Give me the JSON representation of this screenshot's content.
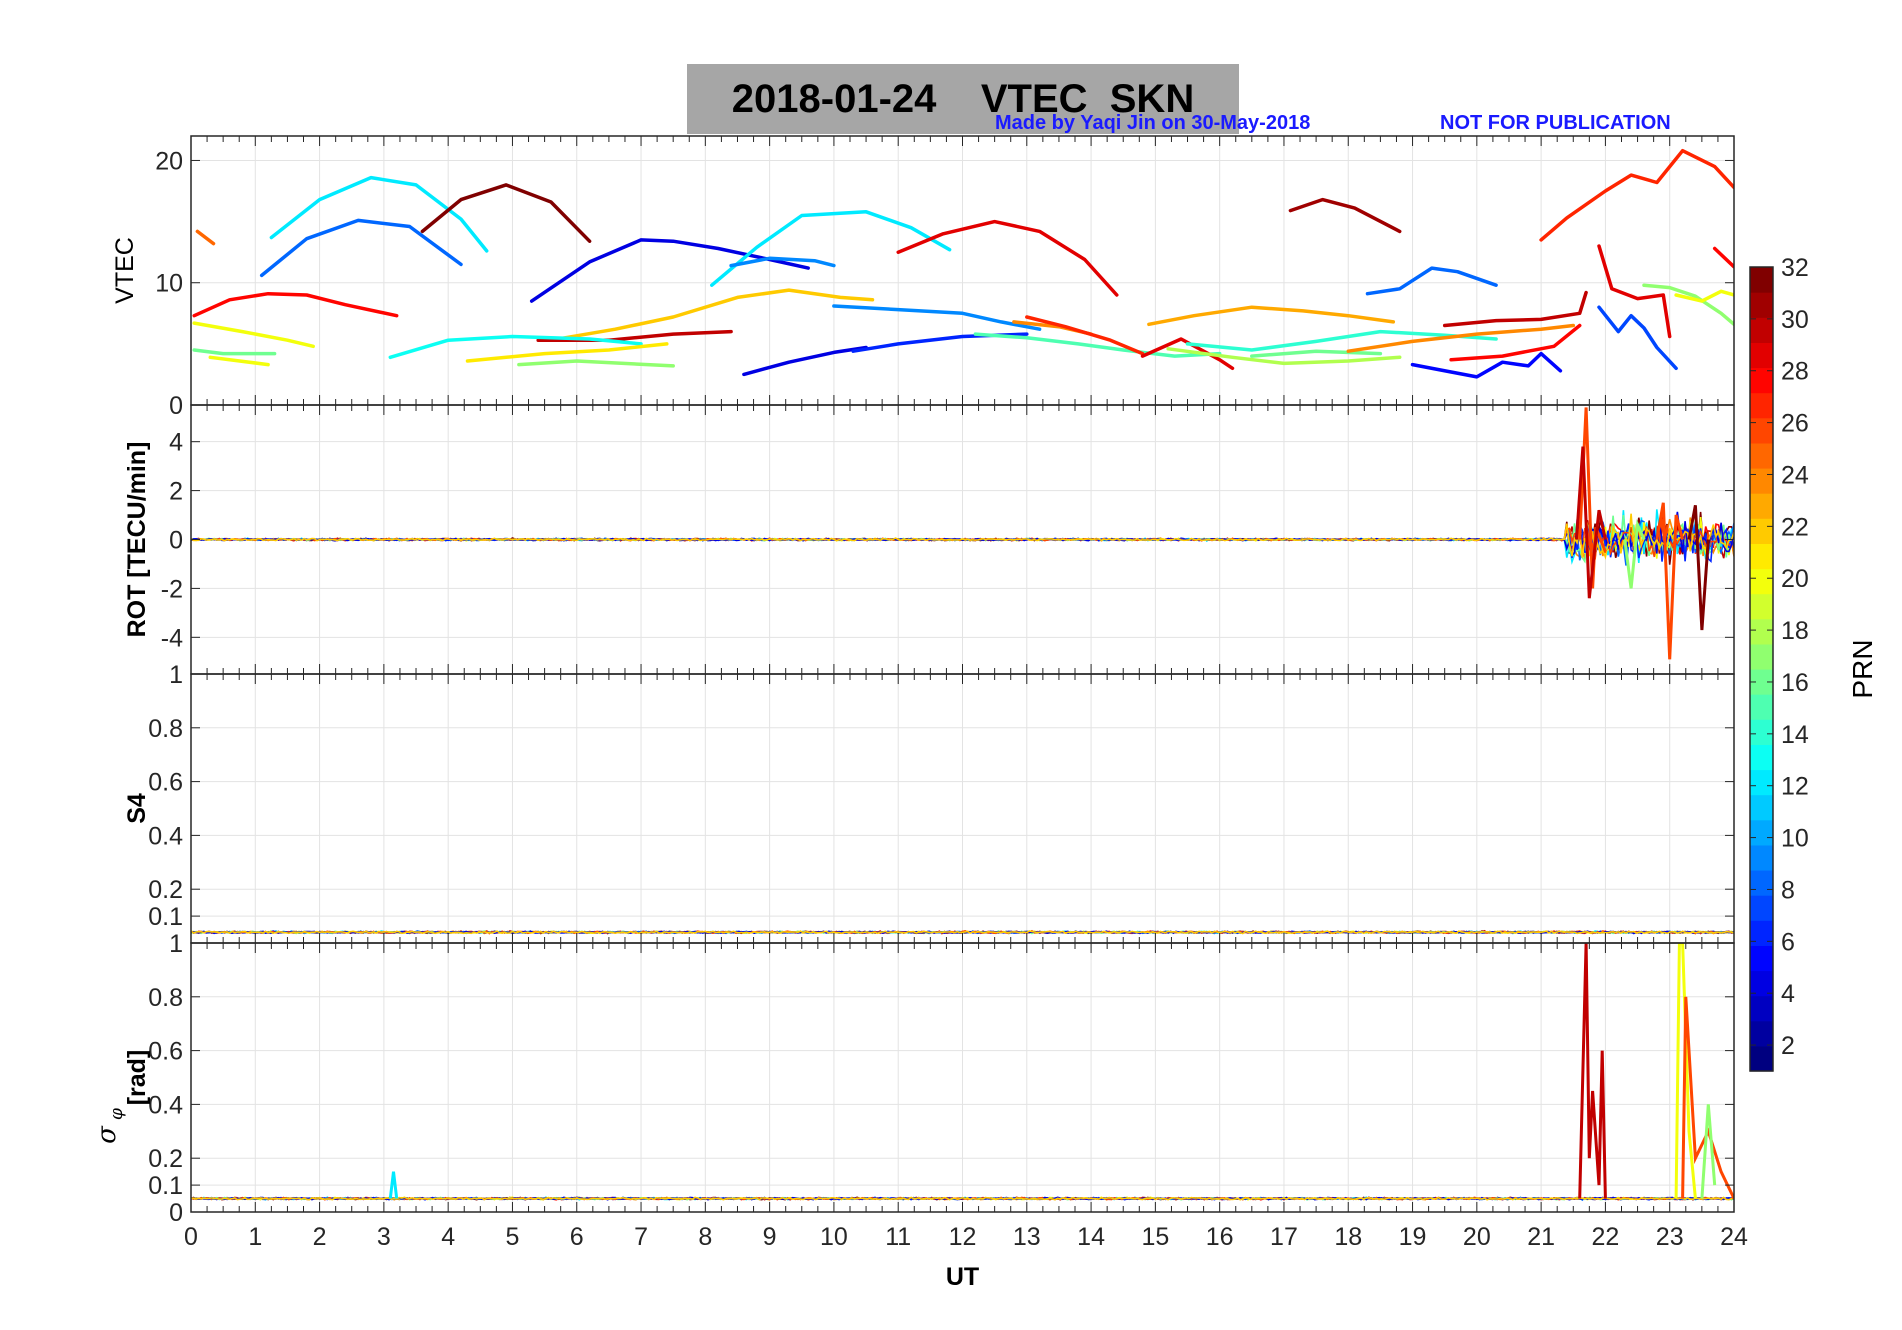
{
  "header": {
    "title": "2018-01-24    VTEC  SKN",
    "credit": "Made by Yaqi Jin on 30-May-2018",
    "notice": "NOT FOR PUBLICATION"
  },
  "chart_data": [
    {
      "type": "line",
      "panel": "vtec",
      "ylabel": "VTEC",
      "xlim": [
        0,
        24
      ],
      "ylim": [
        0,
        22
      ],
      "yticks": [
        0,
        10,
        20
      ],
      "series": [
        {
          "name": "PRN 25",
          "prn": 25,
          "x": [
            0.1,
            0.35
          ],
          "y": [
            14.2,
            13.2
          ]
        },
        {
          "name": "PRN 12",
          "prn": 12,
          "x": [
            1.25,
            2.0,
            2.8,
            3.5,
            4.2,
            4.6
          ],
          "y": [
            13.7,
            16.8,
            18.6,
            18.0,
            15.2,
            12.6
          ]
        },
        {
          "name": "PRN 8",
          "prn": 8,
          "x": [
            1.1,
            1.8,
            2.6,
            3.4,
            4.2
          ],
          "y": [
            10.6,
            13.6,
            15.1,
            14.6,
            11.5
          ]
        },
        {
          "name": "PRN 32",
          "prn": 32,
          "x": [
            3.6,
            4.2,
            4.9,
            5.6,
            6.2
          ],
          "y": [
            14.2,
            16.8,
            18.0,
            16.6,
            13.4
          ]
        },
        {
          "name": "PRN 28",
          "prn": 28,
          "x": [
            0.05,
            0.6,
            1.2,
            1.8,
            2.4,
            3.2
          ],
          "y": [
            7.3,
            8.6,
            9.1,
            9.0,
            8.2,
            7.3
          ]
        },
        {
          "name": "PRN 20",
          "prn": 20,
          "x": [
            0.05,
            0.8,
            1.5,
            1.9
          ],
          "y": [
            6.7,
            6.0,
            5.3,
            4.8
          ]
        },
        {
          "name": "PRN 16",
          "prn": 16,
          "x": [
            0.05,
            0.5,
            1.3
          ],
          "y": [
            4.5,
            4.2,
            4.2
          ]
        },
        {
          "name": "PRN 20",
          "prn": 20,
          "x": [
            0.3,
            1.2
          ],
          "y": [
            3.9,
            3.3
          ]
        },
        {
          "name": "PRN 4",
          "prn": 4,
          "x": [
            5.3,
            6.2,
            7.0,
            7.5,
            8.2,
            9.0,
            9.6
          ],
          "y": [
            8.5,
            11.7,
            13.5,
            13.4,
            12.8,
            11.9,
            11.2
          ]
        },
        {
          "name": "PRN 12",
          "prn": 12,
          "x": [
            8.1,
            8.8,
            9.5,
            10.5,
            11.2,
            11.8
          ],
          "y": [
            9.8,
            12.9,
            15.5,
            15.8,
            14.5,
            12.7
          ]
        },
        {
          "name": "PRN 9",
          "prn": 9,
          "x": [
            8.4,
            9.0,
            9.7,
            10.0
          ],
          "y": [
            11.4,
            12.0,
            11.8,
            11.4
          ]
        },
        {
          "name": "PRN 29",
          "prn": 29,
          "x": [
            11.0,
            11.7,
            12.5,
            13.2,
            13.9,
            14.4
          ],
          "y": [
            12.5,
            14.0,
            15.0,
            14.2,
            11.9,
            9.0
          ]
        },
        {
          "name": "PRN 31",
          "prn": 31,
          "x": [
            17.1,
            17.6,
            18.1,
            18.8
          ],
          "y": [
            15.9,
            16.8,
            16.1,
            14.2
          ]
        },
        {
          "name": "PRN 8",
          "prn": 8,
          "x": [
            18.3,
            18.8,
            19.3,
            19.7,
            20.3
          ],
          "y": [
            9.1,
            9.5,
            11.2,
            10.9,
            9.8
          ]
        },
        {
          "name": "PRN 27",
          "prn": 27,
          "x": [
            21.0,
            21.4,
            22.0,
            22.4,
            22.8,
            23.2,
            23.7,
            24.0
          ],
          "y": [
            13.5,
            15.3,
            17.5,
            18.8,
            18.2,
            20.8,
            19.5,
            17.8
          ]
        },
        {
          "name": "PRN 23",
          "prn": 23,
          "x": [
            14.9,
            15.6,
            16.5,
            17.3,
            18.0,
            18.7
          ],
          "y": [
            6.6,
            7.3,
            8.0,
            7.7,
            7.3,
            6.8
          ]
        },
        {
          "name": "PRN 22",
          "prn": 22,
          "x": [
            5.6,
            6.6,
            7.5,
            8.5,
            9.3,
            10.1,
            10.6
          ],
          "y": [
            5.3,
            6.2,
            7.2,
            8.8,
            9.4,
            8.8,
            8.6
          ]
        },
        {
          "name": "PRN 30",
          "prn": 30,
          "x": [
            5.4,
            6.5,
            7.5,
            8.4
          ],
          "y": [
            5.3,
            5.3,
            5.8,
            6.0
          ]
        },
        {
          "name": "PRN 13",
          "prn": 13,
          "x": [
            3.1,
            4.0,
            5.0,
            6.2,
            7.0
          ],
          "y": [
            3.9,
            5.3,
            5.6,
            5.4,
            5.0
          ]
        },
        {
          "name": "PRN 9",
          "prn": 9,
          "x": [
            10.0,
            11.0,
            12.0,
            12.6,
            13.2
          ],
          "y": [
            8.1,
            7.8,
            7.5,
            6.8,
            6.2
          ]
        },
        {
          "name": "PRN 4",
          "prn": 4,
          "x": [
            8.6,
            9.3,
            10.0,
            10.5
          ],
          "y": [
            2.5,
            3.5,
            4.3,
            4.7
          ]
        },
        {
          "name": "PRN 6",
          "prn": 6,
          "x": [
            10.3,
            11.0,
            12.0,
            13.0
          ],
          "y": [
            4.4,
            5.0,
            5.6,
            5.8
          ]
        },
        {
          "name": "PRN 21",
          "prn": 21,
          "x": [
            4.3,
            5.5,
            6.5,
            7.4
          ],
          "y": [
            3.6,
            4.2,
            4.5,
            5.0
          ]
        },
        {
          "name": "PRN 17",
          "prn": 17,
          "x": [
            5.1,
            6.0,
            7.5
          ],
          "y": [
            3.3,
            3.6,
            3.2
          ]
        },
        {
          "name": "PRN 15",
          "prn": 15,
          "x": [
            12.2,
            13.0,
            13.8,
            14.5,
            15.3,
            16.0
          ],
          "y": [
            5.8,
            5.5,
            5.0,
            4.5,
            4.0,
            4.2
          ]
        },
        {
          "name": "PRN 24",
          "prn": 24,
          "x": [
            12.8,
            13.5,
            14.0
          ],
          "y": [
            6.8,
            6.4,
            5.8
          ]
        },
        {
          "name": "PRN 27",
          "prn": 27,
          "x": [
            13.0,
            13.6,
            14.3,
            14.8
          ],
          "y": [
            7.2,
            6.4,
            5.3,
            4.2
          ]
        },
        {
          "name": "PRN 29",
          "prn": 29,
          "x": [
            14.8,
            15.4,
            16.0,
            16.2
          ],
          "y": [
            4.0,
            5.4,
            3.7,
            3.0
          ]
        },
        {
          "name": "PRN 18",
          "prn": 18,
          "x": [
            15.2,
            16.2,
            17.0,
            18.0,
            18.8
          ],
          "y": [
            4.6,
            3.9,
            3.4,
            3.6,
            3.9
          ]
        },
        {
          "name": "PRN 14",
          "prn": 14,
          "x": [
            15.5,
            16.5,
            17.5,
            18.5,
            19.5,
            20.3
          ],
          "y": [
            5.0,
            4.5,
            5.2,
            6.0,
            5.7,
            5.4
          ]
        },
        {
          "name": "PRN 16",
          "prn": 16,
          "x": [
            16.5,
            17.5,
            18.5
          ],
          "y": [
            4.0,
            4.4,
            4.2
          ]
        },
        {
          "name": "PRN 24",
          "prn": 24,
          "x": [
            18.0,
            19.0,
            20.0,
            21.0,
            21.5
          ],
          "y": [
            4.4,
            5.2,
            5.8,
            6.2,
            6.5
          ]
        },
        {
          "name": "PRN 30",
          "prn": 30,
          "x": [
            19.5,
            20.3,
            21.0,
            21.6,
            21.7
          ],
          "y": [
            6.5,
            6.9,
            7.0,
            7.5,
            9.2
          ]
        },
        {
          "name": "PRN 5",
          "prn": 5,
          "x": [
            19.0,
            19.6,
            20.0,
            20.4,
            20.8,
            21.0,
            21.3
          ],
          "y": [
            3.3,
            2.7,
            2.3,
            3.5,
            3.2,
            4.2,
            2.8
          ]
        },
        {
          "name": "PRN 28",
          "prn": 28,
          "x": [
            19.6,
            20.4,
            21.2,
            21.6
          ],
          "y": [
            3.7,
            4.0,
            4.8,
            6.5
          ]
        },
        {
          "name": "PRN 7",
          "prn": 7,
          "x": [
            21.9,
            22.2,
            22.4,
            22.6,
            22.8,
            23.1
          ],
          "y": [
            8.0,
            6.0,
            7.3,
            6.3,
            4.7,
            3.0
          ]
        },
        {
          "name": "PRN 29",
          "prn": 29,
          "x": [
            21.9,
            22.1,
            22.5,
            22.9,
            23.0
          ],
          "y": [
            13.0,
            9.5,
            8.7,
            9.0,
            5.6
          ]
        },
        {
          "name": "PRN 17",
          "prn": 17,
          "x": [
            22.6,
            23.0,
            23.4,
            23.8,
            24.0
          ],
          "y": [
            9.8,
            9.6,
            8.9,
            7.5,
            6.6
          ]
        },
        {
          "name": "PRN 20",
          "prn": 20,
          "x": [
            23.1,
            23.5,
            23.8,
            24.0
          ],
          "y": [
            9.0,
            8.5,
            9.3,
            9.0
          ]
        },
        {
          "name": "PRN 28",
          "prn": 28,
          "x": [
            23.7,
            24.0
          ],
          "y": [
            12.8,
            11.3
          ]
        }
      ]
    },
    {
      "type": "line",
      "panel": "rot",
      "ylabel": "ROT [TECU/min]",
      "xlim": [
        0,
        24
      ],
      "ylim": [
        -5.5,
        5.5
      ],
      "yticks": [
        -4,
        -2,
        0,
        2,
        4
      ],
      "note": "noise band near 0 with std about 0.06; disturbance after 21.5 UT with peaks near 5.4 and -5"
    },
    {
      "type": "line",
      "panel": "s4",
      "ylabel": "S4",
      "xlim": [
        0,
        24
      ],
      "ylim": [
        0,
        1
      ],
      "yticks": [
        0.1,
        0.2,
        0.4,
        0.6,
        0.8,
        1
      ],
      "note": "baseline about 0.03 to 0.05 all day"
    },
    {
      "type": "line",
      "panel": "sigma_phi",
      "ylabel": "[rad]",
      "xlabel": "UT",
      "xlim": [
        0,
        24
      ],
      "ylim": [
        0,
        1
      ],
      "yticks": [
        0,
        0.1,
        0.2,
        0.4,
        0.6,
        0.8,
        1
      ],
      "xticks": [
        0,
        1,
        2,
        3,
        4,
        5,
        6,
        7,
        8,
        9,
        10,
        11,
        12,
        13,
        14,
        15,
        16,
        17,
        18,
        19,
        20,
        21,
        22,
        23,
        24
      ],
      "note": "baseline about 0.05; spikes near 21.7 UT (1.0) and 23.2 UT (1.0)"
    }
  ],
  "colorbar": {
    "label": "PRN",
    "min": 1,
    "max": 32,
    "ticks": [
      2,
      4,
      6,
      8,
      10,
      12,
      14,
      16,
      18,
      20,
      22,
      24,
      26,
      28,
      30,
      32
    ]
  }
}
